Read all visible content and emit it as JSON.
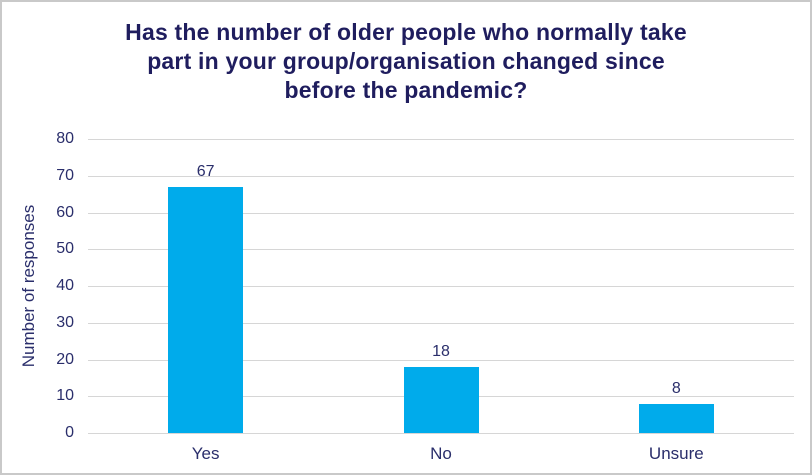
{
  "colors": {
    "bar": "#00abeb",
    "title_text": "#1f1d5e",
    "axis_text": "#2a2e6b",
    "gridline": "#d6d6d6",
    "frame_border": "#c9c9c9",
    "background": "#ffffff"
  },
  "chart_data": {
    "type": "bar",
    "title": "Has the number of older people who normally take part in your group/organisation changed since before the pandemic?",
    "title_lines": [
      "Has the number of older people who normally take",
      "part in your group/organisation changed since",
      "before the pandemic?"
    ],
    "categories": [
      "Yes",
      "No",
      "Unsure"
    ],
    "values": [
      67,
      18,
      8
    ],
    "data_labels": [
      "67",
      "18",
      "8"
    ],
    "xlabel": "",
    "ylabel": "Number of responses",
    "ylim": [
      0,
      80
    ],
    "yticks": [
      0,
      10,
      20,
      30,
      40,
      50,
      60,
      70,
      80
    ],
    "grid": true,
    "legend": false
  }
}
